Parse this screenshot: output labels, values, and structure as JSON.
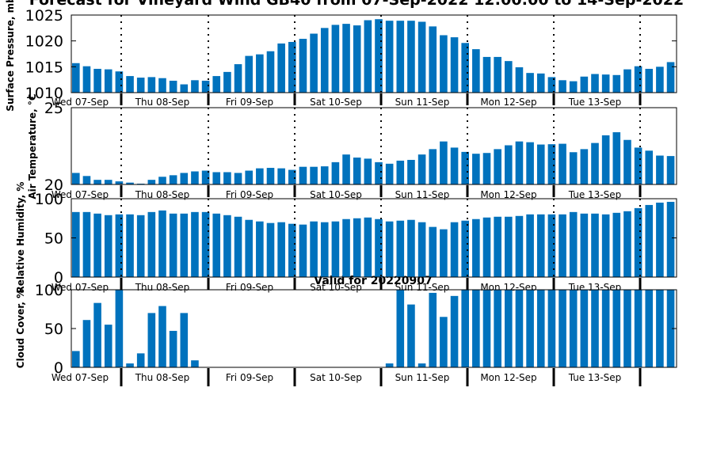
{
  "figure": {
    "title": "Forecast for Vineyard Wind GB40 from 07-Sep-2022 12:00:00 to 14-Sep-2022",
    "valid_label": "Valid for 20220907"
  },
  "colors": {
    "bar": "#0072bd",
    "axis": "#000000",
    "background": "#ffffff"
  },
  "chart_data": [
    {
      "type": "bar",
      "id": "pressure",
      "ylabel": "Surface Pressure, mb",
      "ylim": [
        1010,
        1025
      ],
      "yticks": [
        1010,
        1015,
        1020,
        1025
      ],
      "xticks": [
        "Wed 07-Sep",
        "Thu 08-Sep",
        "Fri 09-Sep",
        "Sat 10-Sep",
        "Sun 11-Sep",
        "Mon 12-Sep",
        "Tue 13-Sep"
      ],
      "day_separators": "dotted",
      "values": [
        1015.7,
        1015.1,
        1014.6,
        1014.5,
        1014.1,
        1013.2,
        1012.9,
        1013.0,
        1012.8,
        1012.3,
        1011.6,
        1012.4,
        1012.3,
        1013.2,
        1014.0,
        1015.5,
        1017.1,
        1017.4,
        1018.0,
        1019.5,
        1019.8,
        1020.4,
        1021.4,
        1022.5,
        1023.1,
        1023.3,
        1023.0,
        1024.0,
        1024.2,
        1023.9,
        1023.9,
        1023.9,
        1023.7,
        1022.8,
        1021.1,
        1020.7,
        1019.6,
        1018.4,
        1016.9,
        1016.9,
        1016.1,
        1014.9,
        1013.8,
        1013.7,
        1013.0,
        1012.4,
        1012.2,
        1013.1,
        1013.6,
        1013.5,
        1013.4,
        1014.5,
        1015.1,
        1014.6,
        1015.0,
        1015.9
      ]
    },
    {
      "type": "bar",
      "id": "temperature",
      "ylabel": "Air Temperature, °C",
      "ylim": [
        20,
        25
      ],
      "yticks": [
        20,
        25
      ],
      "xticks": [
        "Wed 07-Sep",
        "Thu 08-Sep",
        "Fri 09-Sep",
        "Sat 10-Sep",
        "Sun 11-Sep",
        "Mon 12-Sep",
        "Tue 13-Sep"
      ],
      "day_separators": "dotted",
      "values": [
        20.75,
        20.55,
        20.3,
        20.3,
        20.2,
        20.12,
        20.05,
        20.3,
        20.5,
        20.6,
        20.75,
        20.85,
        20.9,
        20.8,
        20.8,
        20.75,
        20.9,
        21.05,
        21.08,
        21.05,
        20.95,
        21.15,
        21.15,
        21.18,
        21.45,
        21.95,
        21.75,
        21.68,
        21.45,
        21.35,
        21.55,
        21.6,
        21.95,
        22.3,
        22.8,
        22.4,
        22.12,
        22.0,
        22.05,
        22.3,
        22.55,
        22.8,
        22.75,
        22.6,
        22.62,
        22.65,
        22.1,
        22.3,
        22.7,
        23.2,
        23.4,
        22.9,
        22.4,
        22.2,
        21.88,
        21.85
      ]
    },
    {
      "type": "bar",
      "id": "humidity",
      "ylabel": "Relative Humidity, %",
      "ylim": [
        0,
        100
      ],
      "yticks": [
        0,
        50,
        100
      ],
      "xticks": [
        "Wed 07-Sep",
        "Thu 08-Sep",
        "Fri 09-Sep",
        "Sat 10-Sep",
        "Sun 11-Sep",
        "Mon 12-Sep",
        "Tue 13-Sep"
      ],
      "day_separators": "dotted",
      "values": [
        83,
        83,
        81,
        79,
        80,
        80,
        79,
        83,
        85,
        81,
        81,
        83,
        83,
        81,
        79,
        77,
        73,
        71,
        69,
        70,
        68,
        67,
        71,
        70,
        71,
        74,
        75,
        76,
        74,
        71,
        72,
        73,
        70,
        64,
        61,
        70,
        72,
        74,
        76,
        77,
        77,
        78,
        80,
        80,
        80,
        80,
        83,
        81,
        81,
        80,
        82,
        84,
        88,
        92,
        95,
        96
      ]
    },
    {
      "type": "bar",
      "id": "cloud",
      "ylabel": "Cloud Cover, %",
      "ylim": [
        0,
        100
      ],
      "yticks": [
        0,
        50,
        100
      ],
      "xticks": [
        "Wed 07-Sep",
        "Thu 08-Sep",
        "Fri 09-Sep",
        "Sat 10-Sep",
        "Sun 11-Sep",
        "Mon 12-Sep",
        "Tue 13-Sep"
      ],
      "day_separators": "solid",
      "values": [
        21,
        61,
        83,
        55,
        100,
        5,
        18,
        70,
        79,
        47,
        70,
        9,
        0,
        0,
        0,
        0,
        0,
        0,
        0,
        0,
        0,
        0,
        0,
        0,
        0,
        0,
        0,
        0,
        0,
        5,
        100,
        81,
        5,
        96,
        65,
        92,
        100,
        100,
        100,
        100,
        100,
        100,
        100,
        100,
        100,
        100,
        100,
        100,
        100,
        100,
        100,
        100,
        100,
        100,
        100,
        100
      ]
    }
  ]
}
